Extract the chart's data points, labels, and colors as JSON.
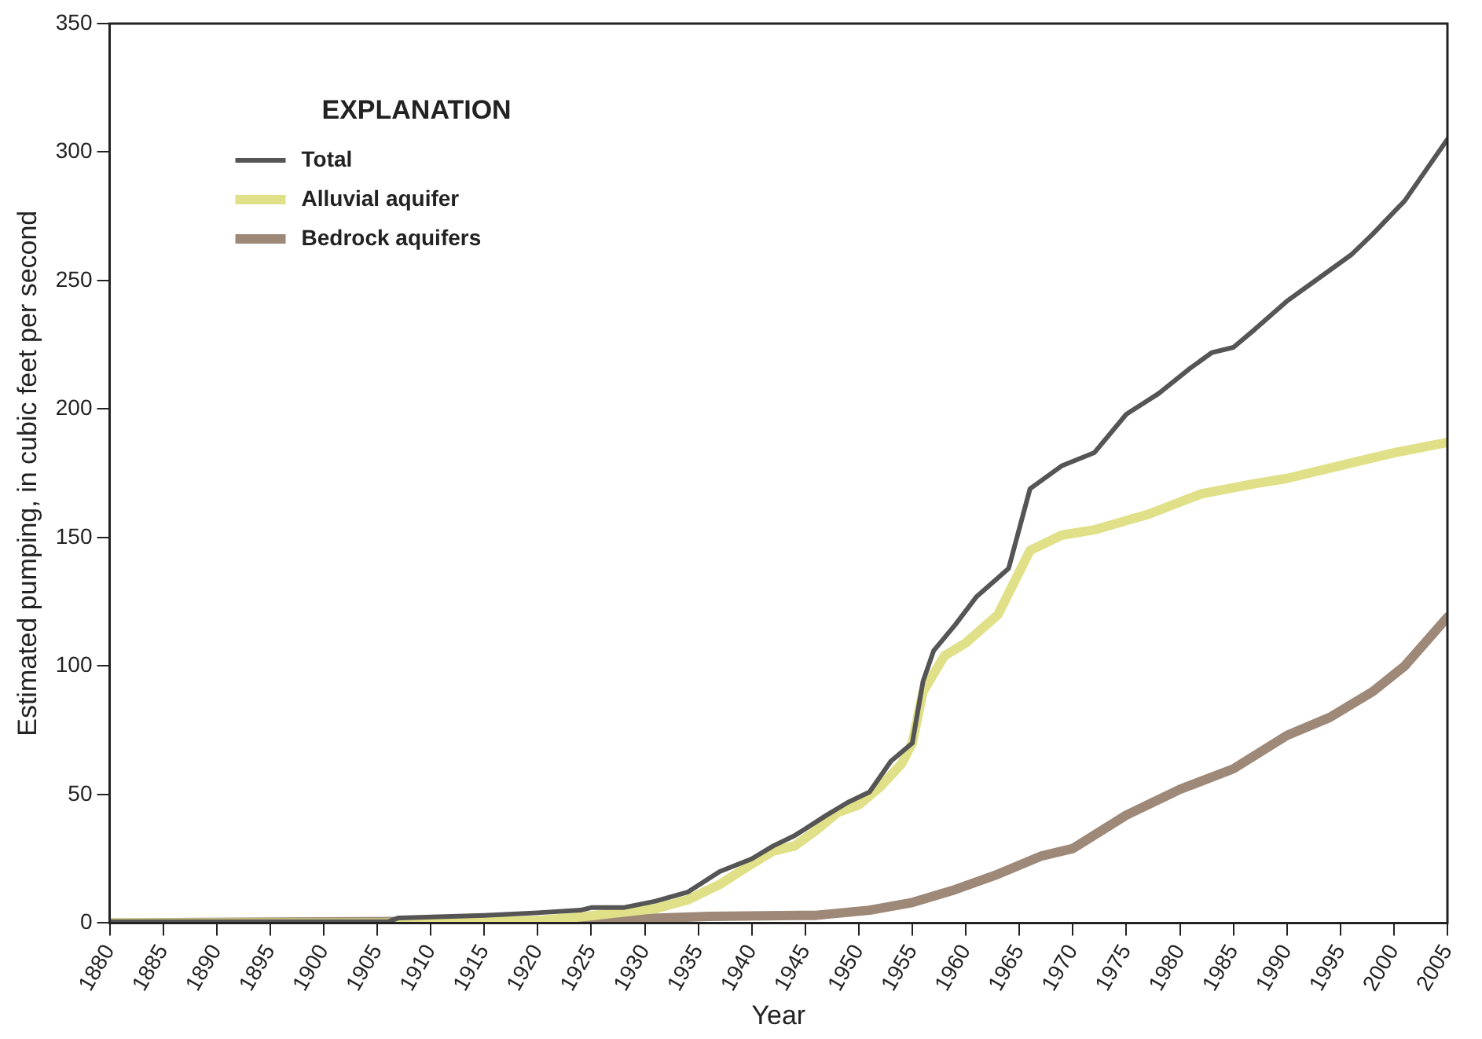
{
  "chart_data": {
    "type": "line",
    "xlabel": "Year",
    "ylabel": "Estimated pumping, in cubic feet per second",
    "legend_title": "EXPLANATION",
    "xlim": [
      1880,
      2005
    ],
    "xticks": [
      1880,
      1885,
      1890,
      1895,
      1900,
      1905,
      1910,
      1915,
      1920,
      1925,
      1930,
      1935,
      1940,
      1945,
      1950,
      1955,
      1960,
      1965,
      1970,
      1975,
      1980,
      1985,
      1990,
      1995,
      2000,
      2005
    ],
    "ylim": [
      0,
      350
    ],
    "yticks": [
      0,
      50,
      100,
      150,
      200,
      250,
      300,
      350
    ],
    "grid": false,
    "legend": "top left",
    "marker": "none",
    "line_style": "solid",
    "series": [
      {
        "name": "Total",
        "color": "#555555",
        "x": [
          1880,
          1906,
          1907,
          1915,
          1920,
          1924,
          1925,
          1928,
          1931,
          1934,
          1937,
          1940,
          1942,
          1944,
          1947,
          1949,
          1951,
          1953,
          1955,
          1956,
          1957,
          1959,
          1961,
          1964,
          1966,
          1969,
          1972,
          1975,
          1978,
          1981,
          1983,
          1985,
          1987,
          1990,
          1993,
          1996,
          1998,
          2001,
          2003,
          2005
        ],
        "values": [
          0.5,
          0.5,
          2,
          3,
          4,
          5,
          6,
          6,
          8.5,
          12,
          20,
          25,
          30,
          34,
          42,
          47,
          51,
          63,
          70,
          94,
          106,
          116,
          127,
          138,
          169,
          178,
          183,
          198,
          206,
          216,
          222,
          224,
          231,
          242,
          251,
          260,
          268,
          281,
          293,
          305
        ]
      },
      {
        "name": "Alluvial aquifer",
        "color": "#e0e088",
        "x": [
          1880,
          1910,
          1920,
          1924,
          1931,
          1934,
          1937,
          1940,
          1942,
          1944,
          1946,
          1948,
          1950,
          1952,
          1954,
          1955,
          1956,
          1957,
          1958,
          1960,
          1963,
          1966,
          1969,
          1972,
          1977,
          1982,
          1987,
          1990,
          1995,
          2000,
          2005
        ],
        "values": [
          0,
          0,
          1,
          2.4,
          5.6,
          9,
          15,
          23,
          28,
          30,
          36,
          43,
          46,
          53,
          62,
          70,
          90,
          97,
          104,
          109,
          120,
          145,
          151,
          153,
          159,
          167,
          171,
          173,
          178,
          183,
          187
        ]
      },
      {
        "name": "Bedrock aquifers",
        "color": "#9e8878",
        "x": [
          1880,
          1925,
          1936,
          1946,
          1951,
          1955,
          1959,
          1963,
          1967,
          1970,
          1975,
          1980,
          1985,
          1990,
          1994,
          1998,
          2001,
          2005
        ],
        "values": [
          0,
          1,
          2.6,
          3,
          5,
          8,
          13,
          19,
          26,
          29,
          42,
          52,
          60,
          73,
          80,
          90,
          100,
          119
        ]
      }
    ]
  }
}
